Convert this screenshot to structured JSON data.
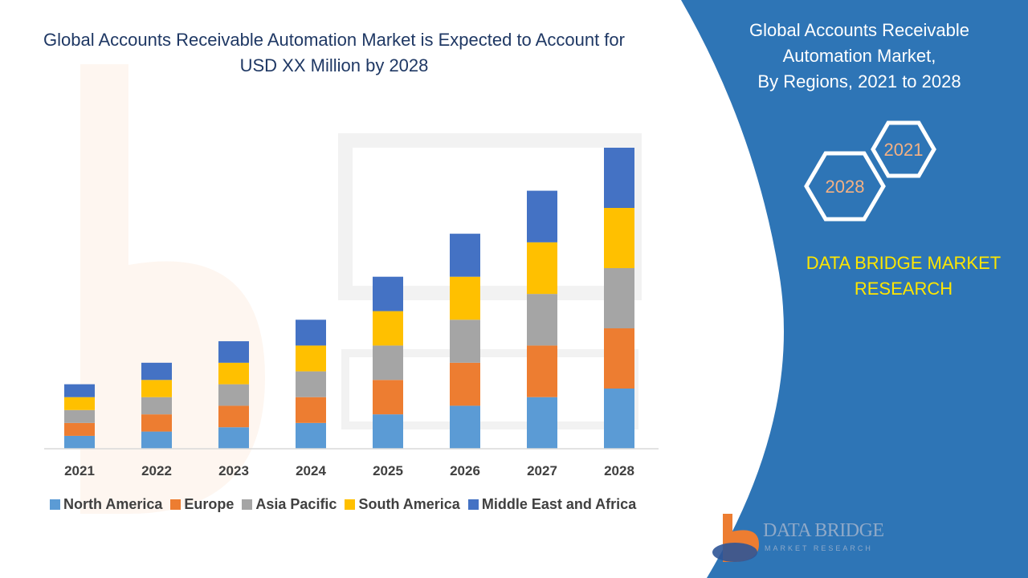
{
  "title": "Global Accounts Receivable Automation Market is Expected to Account for USD XX Million by 2028",
  "title_lines": [
    "Global Accounts Receivable Automation Market is Expected to Account for",
    "USD XX Million by 2028"
  ],
  "panel": {
    "lines": [
      "Global Accounts Receivable",
      "Automation Market,",
      "By Regions, 2021 to 2028"
    ],
    "hex_top_label": "2021",
    "hex_bottom_label": "2028",
    "brand_lines": [
      "DATA BRIDGE MARKET",
      "RESEARCH"
    ],
    "logo_name": "DATA BRIDGE",
    "logo_tagline": "MARKET RESEARCH",
    "colors": {
      "background": "#2e75b6",
      "brand_text": "#ffe600",
      "hex_stroke": "#ffffff",
      "hex_text": "#f4b183"
    }
  },
  "chart_data": {
    "type": "bar",
    "stacked": true,
    "categories": [
      "2021",
      "2022",
      "2023",
      "2024",
      "2025",
      "2026",
      "2027",
      "2028"
    ],
    "series": [
      {
        "name": "North America",
        "color": "#5b9bd5",
        "values": [
          1.5,
          2.0,
          2.5,
          3.0,
          4.0,
          5.0,
          6.0,
          7.0
        ]
      },
      {
        "name": "Europe",
        "color": "#ed7d31",
        "values": [
          1.5,
          2.0,
          2.5,
          3.0,
          4.0,
          5.0,
          6.0,
          7.0
        ]
      },
      {
        "name": "Asia Pacific",
        "color": "#a5a5a5",
        "values": [
          1.5,
          2.0,
          2.5,
          3.0,
          4.0,
          5.0,
          6.0,
          7.0
        ]
      },
      {
        "name": "South America",
        "color": "#ffc000",
        "values": [
          1.5,
          2.0,
          2.5,
          3.0,
          4.0,
          5.0,
          6.0,
          7.0
        ]
      },
      {
        "name": "Middle East and Africa",
        "color": "#4472c4",
        "values": [
          1.5,
          2.0,
          2.5,
          3.0,
          4.0,
          5.0,
          6.0,
          7.0
        ]
      }
    ],
    "xlabel": "",
    "ylabel": "",
    "ylim": [
      0,
      35
    ],
    "grid": false,
    "legend_position": "bottom"
  }
}
